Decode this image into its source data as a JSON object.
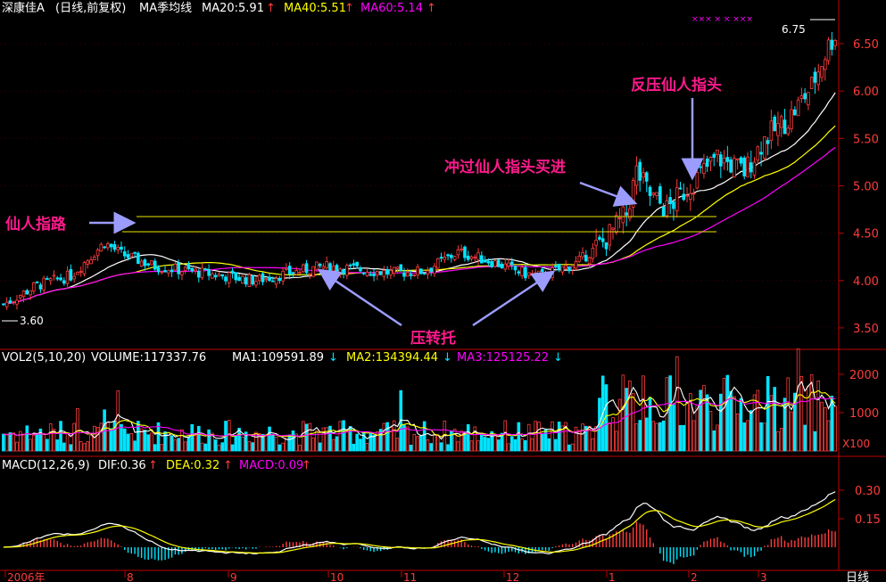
{
  "colors": {
    "background": "#000000",
    "up": "#ff3c3c",
    "down": "#00e5ff",
    "ma_white": "#ffffff",
    "ma_yellow": "#ffff00",
    "ma_magenta": "#ff00ff",
    "axis": "#c00000",
    "annotation_text": "#ff1a8c",
    "arrow": "#9c9cff",
    "price_line": "#e8e800"
  },
  "header": {
    "price": {
      "stock": "深康佳A",
      "period": "(日线,前复权)",
      "indicator": "MA季均线",
      "ma20": "MA20:5.91",
      "ma40": "MA40:5.51",
      "ma60": "MA60:5.14"
    },
    "volume": {
      "label": "VOL2(5,10,20)",
      "volume": "VOLUME:117337.76",
      "ma1": "MA1:109591.89",
      "ma2": "MA2:134394.44",
      "ma3": "MA3:125125.22"
    },
    "macd": {
      "label": "MACD(12,26,9)",
      "dif": "DIF:0.36",
      "dea": "DEA:0.32",
      "macd": "MACD:0.09"
    }
  },
  "annotations": {
    "xianren_zhilu": "仙人指路",
    "fanya": "反压仙人指头",
    "chongguo": "冲过仙人指头买进",
    "yazhuantuo": "压转托",
    "high_marker": "6.75",
    "low_marker": "3.60"
  },
  "axes": {
    "price_ticks": [
      "6.50",
      "6.00",
      "5.50",
      "5.00",
      "4.50",
      "4.00",
      "3.50"
    ],
    "volume_ticks": [
      "2000",
      "1000"
    ],
    "volume_unit": "X100",
    "macd_ticks": [
      "0.30",
      "0.15"
    ],
    "x_labels": [
      "2006年",
      "8",
      "9",
      "10",
      "11",
      "12",
      "1",
      "2",
      "3"
    ],
    "period_label": "日线"
  },
  "chart_data": {
    "type": "candlestick",
    "y_range_price": [
      3.4,
      6.95
    ],
    "y_ticks_price": [
      3.5,
      4.0,
      4.5,
      5.0,
      5.5,
      6.0,
      6.5
    ],
    "y_ticks_volume": [
      1000,
      2000
    ],
    "volume_unit": "X100",
    "y_ticks_macd": [
      0.15,
      0.3
    ],
    "x_labels": [
      "2006年",
      "8",
      "9",
      "10",
      "11",
      "12",
      "1",
      "2",
      "3"
    ],
    "high_marker": 6.75,
    "low_marker": 3.6,
    "resistance_levels": [
      4.66,
      4.5
    ],
    "close_path": [
      [
        0,
        3.75
      ],
      [
        10,
        3.95
      ],
      [
        20,
        4.05
      ],
      [
        30,
        4.4
      ],
      [
        35,
        4.28
      ],
      [
        45,
        4.15
      ],
      [
        55,
        4.1
      ],
      [
        65,
        4.05
      ],
      [
        75,
        4.0
      ],
      [
        85,
        4.08
      ],
      [
        95,
        4.15
      ],
      [
        105,
        4.12
      ],
      [
        115,
        4.08
      ],
      [
        125,
        4.1
      ],
      [
        135,
        4.3
      ],
      [
        145,
        4.2
      ],
      [
        155,
        4.07
      ],
      [
        160,
        4.05
      ],
      [
        170,
        4.18
      ],
      [
        178,
        4.4
      ],
      [
        185,
        4.7
      ],
      [
        188,
        5.15
      ],
      [
        192,
        4.9
      ],
      [
        197,
        4.75
      ],
      [
        205,
        5.05
      ],
      [
        212,
        5.3
      ],
      [
        220,
        5.15
      ],
      [
        226,
        5.5
      ],
      [
        233,
        5.7
      ],
      [
        240,
        6.05
      ],
      [
        245,
        6.48
      ],
      [
        247,
        6.6
      ]
    ],
    "series": [
      {
        "name": "MA20",
        "last": 5.91
      },
      {
        "name": "MA40",
        "last": 5.51
      },
      {
        "name": "MA60",
        "last": 5.14
      }
    ],
    "volume": {
      "last": 117337.76,
      "ma1": 109591.89,
      "ma2": 134394.44,
      "ma3": 125125.22
    },
    "macd": {
      "dif": 0.36,
      "dea": 0.32,
      "macd": 0.09
    }
  }
}
